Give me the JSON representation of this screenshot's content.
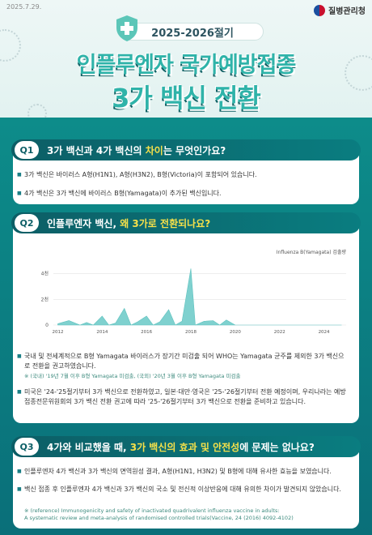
{
  "header": {
    "date": "2025.7.29.",
    "agency": "질병관리청",
    "season": "2025-2026절기",
    "title_line1": "인플루엔자 국가예방접종",
    "title_line2": "3가 백신 전환"
  },
  "q1": {
    "badge": "Q1",
    "question_parts": [
      "3가 백신과 4가 백신의 ",
      "차이",
      "는 무엇인가요?"
    ],
    "bullets": [
      "3가 백신은 바이러스 A형(H1N1), A형(H3N2), B형(Victoria)이 포함되어 있습니다.",
      "4가 백신은 3가 백신에 바이러스 B형(Yamagata)이 추가된 백신입니다."
    ]
  },
  "q2": {
    "badge": "Q2",
    "question_parts": [
      "인플루엔자 백신, ",
      "왜 3가로 전환되나요?"
    ],
    "bullets": [
      "국내 및 전세계적으로 B형 Yamagata 바이러스가 장기간 미검출 되어 WHO는 Yamagata 균주를 제외한 3가 백신으로 전환을 권고하였습니다.",
      "미국은 '24-'25절기부터 3가 백신으로 전환하였고, 일본·대만·영국은 '25-'26절기부터 전환 예정이며, 우리나라는 예방접종전문위원회의 3가 백신 전환 권고에 따라 '25-'26절기부터 3가 백신으로 전환을 준비하고 있습니다."
    ],
    "note": "※ (국내) '19년 7월 이후 B형 Yamagata 미검출, (국외) '20년 3월 이후 B형 Yamagata 미검출"
  },
  "q3": {
    "badge": "Q3",
    "question_parts": [
      "4가와 비교했을 때, ",
      "3가 백신의 효과 및 안전성",
      "에 문제는 없나요?"
    ],
    "bullets": [
      "인플루엔자 4가 백신과 3가 백신의 면역원성 결과, A형(H1N1, H3N2) 및 B형에 대해 유사한 효능을 보였습니다.",
      "백신 접종 후 인플루엔자 4가 백신과 3가 백신의 국소 및 전신적 이상반응에 대해 유의한 차이가 발견되지 않았습니다."
    ],
    "note_line1": "※ (reference) Immunogenicity and safety of inactivated quadrivalent influenza vaccine in adults:",
    "note_line2": "A systematic review and meta-analysis of randomised controlled trials(Vaccine, 24 (2016) 4092-4102)"
  },
  "chart_data": {
    "type": "area",
    "title": "Influenza B(Yamagata) 검출량",
    "y_ticks": [
      "0",
      "2천",
      "4천"
    ],
    "x_ticks": [
      "2012",
      "2014",
      "2016",
      "2018",
      "2020",
      "2022",
      "2024"
    ],
    "x": [
      2012.0,
      2012.5,
      2013.0,
      2013.3,
      2013.6,
      2014.0,
      2014.3,
      2014.6,
      2015.0,
      2015.3,
      2015.6,
      2016.0,
      2016.3,
      2016.6,
      2017.0,
      2017.3,
      2017.6,
      2018.0,
      2018.2,
      2018.6,
      2019.0,
      2019.3,
      2019.6,
      2020.0,
      2021.0,
      2022.0,
      2023.0,
      2024.0,
      2024.8
    ],
    "y": [
      100,
      350,
      0,
      200,
      0,
      700,
      0,
      150,
      1300,
      0,
      250,
      700,
      0,
      250,
      1200,
      0,
      300,
      4400,
      0,
      300,
      350,
      0,
      400,
      0,
      0,
      0,
      0,
      0,
      0
    ],
    "ylim": [
      0,
      4800
    ],
    "xlim": [
      2011.8,
      2025.0
    ],
    "color": "#7fd1cf"
  }
}
